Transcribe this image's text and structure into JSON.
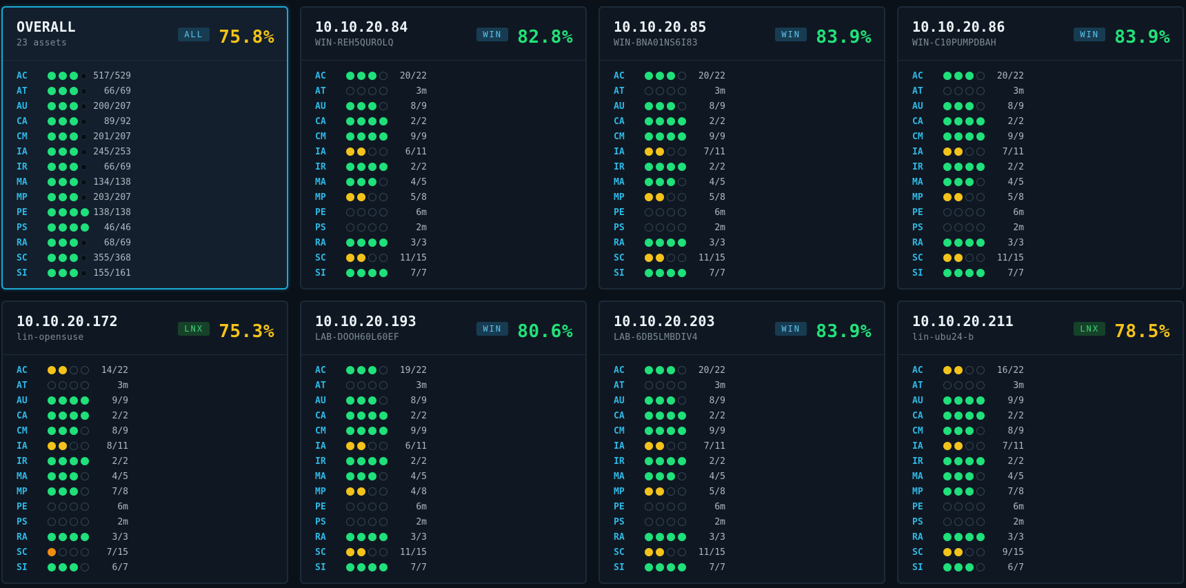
{
  "colors": {
    "background": "#0b1119",
    "card": "#0f1822",
    "selected_border": "#1aa9d6",
    "family_label": "#2fb8e6",
    "dot_full": "#1fe07a",
    "dot_partial": "#f4c31b",
    "dot_low": "#f28b14",
    "score_good": "#22e27a",
    "score_warn": "#f4c319"
  },
  "cards": [
    {
      "title": "OVERALL",
      "subtitle": "23 assets",
      "badge": "ALL",
      "badge_kind": "all",
      "score": "75.8%",
      "score_level": "warn",
      "selected": true,
      "rows": [
        {
          "family": "AC",
          "dots": "gggs",
          "count": "517/529"
        },
        {
          "family": "AT",
          "dots": "gggs",
          "count": "66/69"
        },
        {
          "family": "AU",
          "dots": "gggs",
          "count": "200/207"
        },
        {
          "family": "CA",
          "dots": "gggs",
          "count": "89/92"
        },
        {
          "family": "CM",
          "dots": "gggs",
          "count": "201/207"
        },
        {
          "family": "IA",
          "dots": "gggs",
          "count": "245/253"
        },
        {
          "family": "IR",
          "dots": "gggs",
          "count": "66/69"
        },
        {
          "family": "MA",
          "dots": "gggs",
          "count": "134/138"
        },
        {
          "family": "MP",
          "dots": "gggs",
          "count": "203/207"
        },
        {
          "family": "PE",
          "dots": "gggg",
          "count": "138/138"
        },
        {
          "family": "PS",
          "dots": "gggg",
          "count": "46/46"
        },
        {
          "family": "RA",
          "dots": "gggs",
          "count": "68/69"
        },
        {
          "family": "SC",
          "dots": "gggs",
          "count": "355/368"
        },
        {
          "family": "SI",
          "dots": "gggs",
          "count": "155/161"
        }
      ]
    },
    {
      "title": "10.10.20.84",
      "subtitle": "WIN-REH5QUROLQ",
      "badge": "WIN",
      "badge_kind": "win",
      "score": "82.8%",
      "score_level": "good",
      "selected": false,
      "rows": [
        {
          "family": "AC",
          "dots": "ggge",
          "count": "20/22"
        },
        {
          "family": "AT",
          "dots": "eeee",
          "count": "3m"
        },
        {
          "family": "AU",
          "dots": "ggge",
          "count": "8/9"
        },
        {
          "family": "CA",
          "dots": "gggg",
          "count": "2/2"
        },
        {
          "family": "CM",
          "dots": "gggg",
          "count": "9/9"
        },
        {
          "family": "IA",
          "dots": "yyee",
          "count": "6/11"
        },
        {
          "family": "IR",
          "dots": "gggg",
          "count": "2/2"
        },
        {
          "family": "MA",
          "dots": "ggge",
          "count": "4/5"
        },
        {
          "family": "MP",
          "dots": "yyee",
          "count": "5/8"
        },
        {
          "family": "PE",
          "dots": "eeee",
          "count": "6m"
        },
        {
          "family": "PS",
          "dots": "eeee",
          "count": "2m"
        },
        {
          "family": "RA",
          "dots": "gggg",
          "count": "3/3"
        },
        {
          "family": "SC",
          "dots": "yyee",
          "count": "11/15"
        },
        {
          "family": "SI",
          "dots": "gggg",
          "count": "7/7"
        }
      ]
    },
    {
      "title": "10.10.20.85",
      "subtitle": "WIN-BNA01NS6I83",
      "badge": "WIN",
      "badge_kind": "win",
      "score": "83.9%",
      "score_level": "good",
      "selected": false,
      "rows": [
        {
          "family": "AC",
          "dots": "ggge",
          "count": "20/22"
        },
        {
          "family": "AT",
          "dots": "eeee",
          "count": "3m"
        },
        {
          "family": "AU",
          "dots": "ggge",
          "count": "8/9"
        },
        {
          "family": "CA",
          "dots": "gggg",
          "count": "2/2"
        },
        {
          "family": "CM",
          "dots": "gggg",
          "count": "9/9"
        },
        {
          "family": "IA",
          "dots": "yyee",
          "count": "7/11"
        },
        {
          "family": "IR",
          "dots": "gggg",
          "count": "2/2"
        },
        {
          "family": "MA",
          "dots": "ggge",
          "count": "4/5"
        },
        {
          "family": "MP",
          "dots": "yyee",
          "count": "5/8"
        },
        {
          "family": "PE",
          "dots": "eeee",
          "count": "6m"
        },
        {
          "family": "PS",
          "dots": "eeee",
          "count": "2m"
        },
        {
          "family": "RA",
          "dots": "gggg",
          "count": "3/3"
        },
        {
          "family": "SC",
          "dots": "yyee",
          "count": "11/15"
        },
        {
          "family": "SI",
          "dots": "gggg",
          "count": "7/7"
        }
      ]
    },
    {
      "title": "10.10.20.86",
      "subtitle": "WIN-C10PUMPDBAH",
      "badge": "WIN",
      "badge_kind": "win",
      "score": "83.9%",
      "score_level": "good",
      "selected": false,
      "rows": [
        {
          "family": "AC",
          "dots": "ggge",
          "count": "20/22"
        },
        {
          "family": "AT",
          "dots": "eeee",
          "count": "3m"
        },
        {
          "family": "AU",
          "dots": "ggge",
          "count": "8/9"
        },
        {
          "family": "CA",
          "dots": "gggg",
          "count": "2/2"
        },
        {
          "family": "CM",
          "dots": "gggg",
          "count": "9/9"
        },
        {
          "family": "IA",
          "dots": "yyee",
          "count": "7/11"
        },
        {
          "family": "IR",
          "dots": "gggg",
          "count": "2/2"
        },
        {
          "family": "MA",
          "dots": "ggge",
          "count": "4/5"
        },
        {
          "family": "MP",
          "dots": "yyee",
          "count": "5/8"
        },
        {
          "family": "PE",
          "dots": "eeee",
          "count": "6m"
        },
        {
          "family": "PS",
          "dots": "eeee",
          "count": "2m"
        },
        {
          "family": "RA",
          "dots": "gggg",
          "count": "3/3"
        },
        {
          "family": "SC",
          "dots": "yyee",
          "count": "11/15"
        },
        {
          "family": "SI",
          "dots": "gggg",
          "count": "7/7"
        }
      ]
    },
    {
      "title": "10.10.20.172",
      "subtitle": "lin-opensuse",
      "badge": "LNX",
      "badge_kind": "lnx",
      "score": "75.3%",
      "score_level": "warn",
      "selected": false,
      "rows": [
        {
          "family": "AC",
          "dots": "yyee",
          "count": "14/22"
        },
        {
          "family": "AT",
          "dots": "eeee",
          "count": "3m"
        },
        {
          "family": "AU",
          "dots": "gggg",
          "count": "9/9"
        },
        {
          "family": "CA",
          "dots": "gggg",
          "count": "2/2"
        },
        {
          "family": "CM",
          "dots": "ggge",
          "count": "8/9"
        },
        {
          "family": "IA",
          "dots": "yyee",
          "count": "8/11"
        },
        {
          "family": "IR",
          "dots": "gggg",
          "count": "2/2"
        },
        {
          "family": "MA",
          "dots": "ggge",
          "count": "4/5"
        },
        {
          "family": "MP",
          "dots": "ggge",
          "count": "7/8"
        },
        {
          "family": "PE",
          "dots": "eeee",
          "count": "6m"
        },
        {
          "family": "PS",
          "dots": "eeee",
          "count": "2m"
        },
        {
          "family": "RA",
          "dots": "gggg",
          "count": "3/3"
        },
        {
          "family": "SC",
          "dots": "oeee",
          "count": "7/15"
        },
        {
          "family": "SI",
          "dots": "ggge",
          "count": "6/7"
        }
      ]
    },
    {
      "title": "10.10.20.193",
      "subtitle": "LAB-DOOH60L60EF",
      "badge": "WIN",
      "badge_kind": "win",
      "score": "80.6%",
      "score_level": "good",
      "selected": false,
      "rows": [
        {
          "family": "AC",
          "dots": "ggge",
          "count": "19/22"
        },
        {
          "family": "AT",
          "dots": "eeee",
          "count": "3m"
        },
        {
          "family": "AU",
          "dots": "ggge",
          "count": "8/9"
        },
        {
          "family": "CA",
          "dots": "gggg",
          "count": "2/2"
        },
        {
          "family": "CM",
          "dots": "gggg",
          "count": "9/9"
        },
        {
          "family": "IA",
          "dots": "yyee",
          "count": "6/11"
        },
        {
          "family": "IR",
          "dots": "gggg",
          "count": "2/2"
        },
        {
          "family": "MA",
          "dots": "ggge",
          "count": "4/5"
        },
        {
          "family": "MP",
          "dots": "yyee",
          "count": "4/8"
        },
        {
          "family": "PE",
          "dots": "eeee",
          "count": "6m"
        },
        {
          "family": "PS",
          "dots": "eeee",
          "count": "2m"
        },
        {
          "family": "RA",
          "dots": "gggg",
          "count": "3/3"
        },
        {
          "family": "SC",
          "dots": "yyee",
          "count": "11/15"
        },
        {
          "family": "SI",
          "dots": "gggg",
          "count": "7/7"
        }
      ]
    },
    {
      "title": "10.10.20.203",
      "subtitle": "LAB-6DB5LMBDIV4",
      "badge": "WIN",
      "badge_kind": "win",
      "score": "83.9%",
      "score_level": "good",
      "selected": false,
      "rows": [
        {
          "family": "AC",
          "dots": "ggge",
          "count": "20/22"
        },
        {
          "family": "AT",
          "dots": "eeee",
          "count": "3m"
        },
        {
          "family": "AU",
          "dots": "ggge",
          "count": "8/9"
        },
        {
          "family": "CA",
          "dots": "gggg",
          "count": "2/2"
        },
        {
          "family": "CM",
          "dots": "gggg",
          "count": "9/9"
        },
        {
          "family": "IA",
          "dots": "yyee",
          "count": "7/11"
        },
        {
          "family": "IR",
          "dots": "gggg",
          "count": "2/2"
        },
        {
          "family": "MA",
          "dots": "ggge",
          "count": "4/5"
        },
        {
          "family": "MP",
          "dots": "yyee",
          "count": "5/8"
        },
        {
          "family": "PE",
          "dots": "eeee",
          "count": "6m"
        },
        {
          "family": "PS",
          "dots": "eeee",
          "count": "2m"
        },
        {
          "family": "RA",
          "dots": "gggg",
          "count": "3/3"
        },
        {
          "family": "SC",
          "dots": "yyee",
          "count": "11/15"
        },
        {
          "family": "SI",
          "dots": "gggg",
          "count": "7/7"
        }
      ]
    },
    {
      "title": "10.10.20.211",
      "subtitle": "lin-ubu24-b",
      "badge": "LNX",
      "badge_kind": "lnx",
      "score": "78.5%",
      "score_level": "warn",
      "selected": false,
      "rows": [
        {
          "family": "AC",
          "dots": "yyee",
          "count": "16/22"
        },
        {
          "family": "AT",
          "dots": "eeee",
          "count": "3m"
        },
        {
          "family": "AU",
          "dots": "gggg",
          "count": "9/9"
        },
        {
          "family": "CA",
          "dots": "gggg",
          "count": "2/2"
        },
        {
          "family": "CM",
          "dots": "ggge",
          "count": "8/9"
        },
        {
          "family": "IA",
          "dots": "yyee",
          "count": "7/11"
        },
        {
          "family": "IR",
          "dots": "gggg",
          "count": "2/2"
        },
        {
          "family": "MA",
          "dots": "ggge",
          "count": "4/5"
        },
        {
          "family": "MP",
          "dots": "ggge",
          "count": "7/8"
        },
        {
          "family": "PE",
          "dots": "eeee",
          "count": "6m"
        },
        {
          "family": "PS",
          "dots": "eeee",
          "count": "2m"
        },
        {
          "family": "RA",
          "dots": "gggg",
          "count": "3/3"
        },
        {
          "family": "SC",
          "dots": "yyee",
          "count": "9/15"
        },
        {
          "family": "SI",
          "dots": "ggge",
          "count": "6/7"
        }
      ]
    }
  ]
}
